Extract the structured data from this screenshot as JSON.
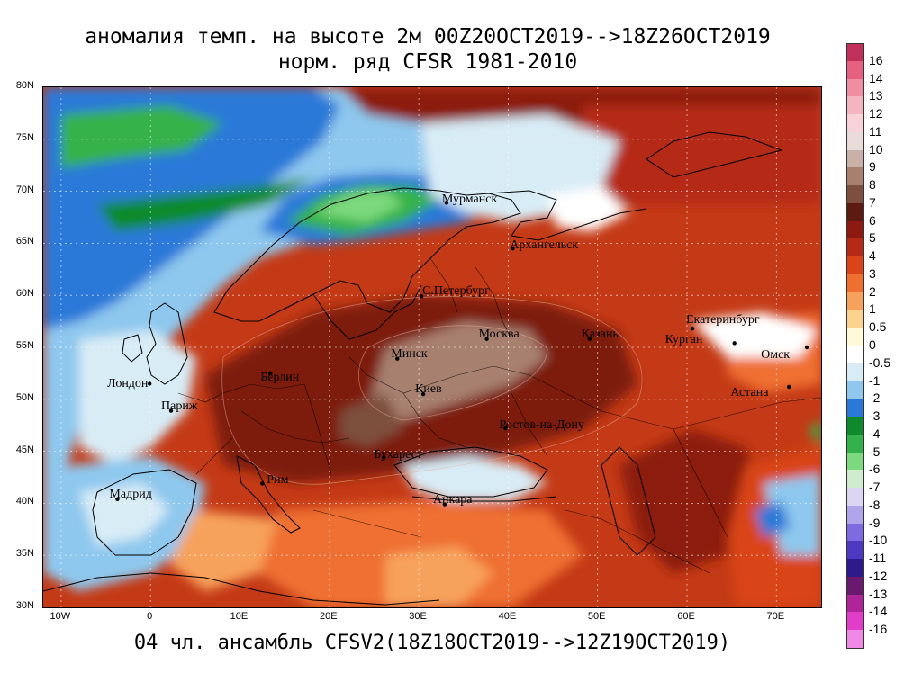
{
  "header": {
    "title_line1": "аномалия темп. на высоте 2м 00Z20OCT2019-->18Z26OCT2019",
    "title_line2": "норм. ряд CFSR 1981-2010"
  },
  "footer": {
    "text": "04 чл. ансамбль CFSV2(18Z18OCT2019-->12Z19OCT2019)"
  },
  "map": {
    "lon_range": [
      -12,
      75
    ],
    "lat_range": [
      30,
      80
    ],
    "lat_ticks": [
      "80N",
      "75N",
      "70N",
      "65N",
      "60N",
      "55N",
      "50N",
      "45N",
      "40N",
      "35N",
      "30N"
    ],
    "lon_ticks": [
      "10W",
      "0",
      "10E",
      "20E",
      "30E",
      "40E",
      "50E",
      "60E",
      "70E"
    ],
    "cities": [
      {
        "name": "Мурманск",
        "lon": 33.1,
        "lat": 68.9
      },
      {
        "name": "Архангельск",
        "lon": 40.5,
        "lat": 64.5
      },
      {
        "name": "С.Петербург",
        "lon": 30.3,
        "lat": 59.9
      },
      {
        "name": "Москва",
        "lon": 37.6,
        "lat": 55.8
      },
      {
        "name": "Казань",
        "lon": 49.1,
        "lat": 55.8
      },
      {
        "name": "Екатеринбург",
        "lon": 60.6,
        "lat": 56.8
      },
      {
        "name": "Курган",
        "lon": 65.3,
        "lat": 55.4
      },
      {
        "name": "Омск",
        "lon": 73.4,
        "lat": 55.0
      },
      {
        "name": "Астана",
        "lon": 71.4,
        "lat": 51.2
      },
      {
        "name": "Минск",
        "lon": 27.6,
        "lat": 53.9
      },
      {
        "name": "Берлин",
        "lon": 13.4,
        "lat": 52.5
      },
      {
        "name": "Лондон",
        "lon": -0.1,
        "lat": 51.5
      },
      {
        "name": "Париж",
        "lon": 2.3,
        "lat": 48.9
      },
      {
        "name": "Киев",
        "lon": 30.5,
        "lat": 50.5
      },
      {
        "name": "Ростов-на-Дону",
        "lon": 39.7,
        "lat": 47.2
      },
      {
        "name": "Бухарест",
        "lon": 26.1,
        "lat": 44.4
      },
      {
        "name": "Рим",
        "lon": 12.5,
        "lat": 41.9
      },
      {
        "name": "Мадрид",
        "lon": -3.7,
        "lat": 40.4
      },
      {
        "name": "Анкара",
        "lon": 32.9,
        "lat": 39.9
      }
    ]
  },
  "colorbar": {
    "labels": [
      "16",
      "14",
      "13",
      "12",
      "11",
      "10",
      "9",
      "8",
      "7",
      "6",
      "5",
      "4",
      "3",
      "2",
      "1",
      "0.5",
      "0",
      "-0.5",
      "-1",
      "-2",
      "-3",
      "-4",
      "-5",
      "-6",
      "-7",
      "-8",
      "-9",
      "-10",
      "-11",
      "-12",
      "-13",
      "-14",
      "-16"
    ],
    "colors": [
      "#c0305a",
      "#e6607f",
      "#f08da0",
      "#f5b5c0",
      "#f7d2d6",
      "#eadcd8",
      "#c9b0a8",
      "#a88070",
      "#7d4f3e",
      "#5c1a10",
      "#8c1a10",
      "#b52a12",
      "#d94418",
      "#ef6f30",
      "#f7a25c",
      "#fbd28e",
      "#fff9d8",
      "#ffffff",
      "#d8ecf6",
      "#8ec8ee",
      "#2a79d8",
      "#0f8a2a",
      "#34b24a",
      "#7dd97e",
      "#cfeccf",
      "#dcd6f2",
      "#b0a4ea",
      "#7f6be0",
      "#4d38c2",
      "#2e1a8a",
      "#6a1a6e",
      "#b0249a",
      "#e03ec8",
      "#f088e8"
    ]
  }
}
